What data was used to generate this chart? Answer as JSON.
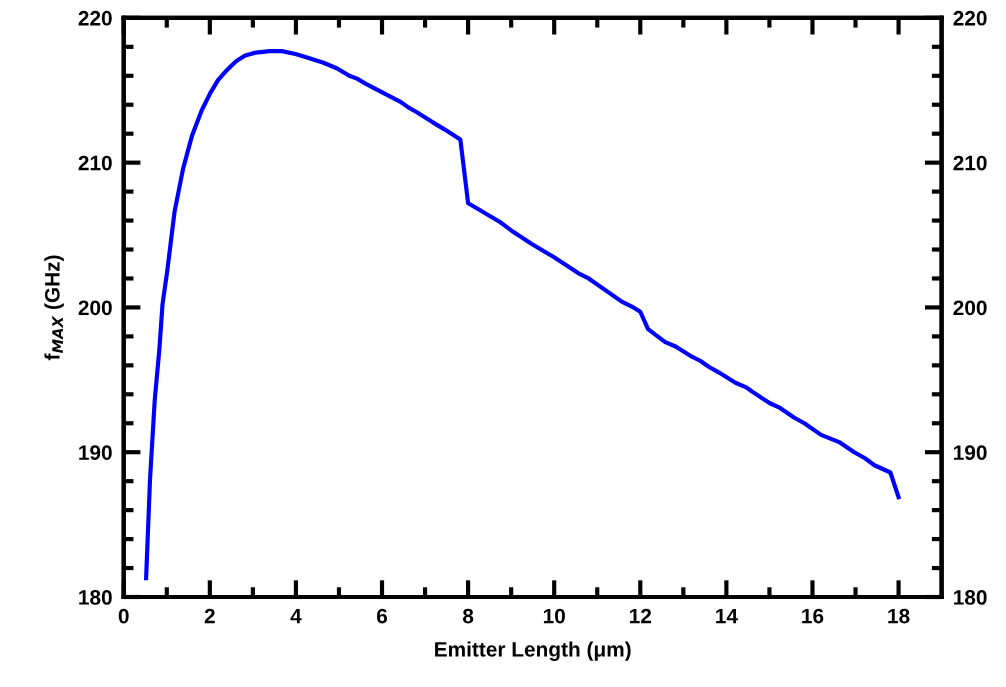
{
  "chart_data": {
    "type": "line",
    "xlabel": "Emitter Length (μm)",
    "ylabel": "f$_{MAX}$ (GHz)",
    "xlim": [
      0,
      19
    ],
    "ylim": [
      180,
      220
    ],
    "y2lim": [
      180,
      220
    ],
    "xticks": [
      0,
      {
        "value": 1,
        "label": null
      },
      2,
      {
        "value": 3,
        "label": null
      },
      4,
      {
        "value": 5,
        "label": null
      },
      6,
      {
        "value": 7,
        "label": null
      },
      8,
      {
        "value": 9,
        "label": null
      },
      10,
      {
        "value": 11,
        "label": null
      },
      12,
      {
        "value": 13,
        "label": null
      },
      14,
      {
        "value": 15,
        "label": null
      },
      16,
      {
        "value": 17,
        "label": null
      },
      18
    ],
    "yticks": [
      180,
      {
        "value": 182,
        "label": null
      },
      {
        "value": 184,
        "label": null
      },
      {
        "value": 186,
        "label": null
      },
      {
        "value": 188,
        "label": null
      },
      190,
      {
        "value": 192,
        "label": null
      },
      {
        "value": 194,
        "label": null
      },
      {
        "value": 196,
        "label": null
      },
      {
        "value": 198,
        "label": null
      },
      200,
      {
        "value": 202,
        "label": null
      },
      {
        "value": 204,
        "label": null
      },
      {
        "value": 206,
        "label": null
      },
      {
        "value": 208,
        "label": null
      },
      210,
      {
        "value": 212,
        "label": null
      },
      {
        "value": 214,
        "label": null
      },
      {
        "value": 216,
        "label": null
      },
      {
        "value": 218,
        "label": null
      },
      220
    ],
    "y2ticks": [
      180,
      {
        "value": 182,
        "label": null
      },
      {
        "value": 184,
        "label": null
      },
      {
        "value": 186,
        "label": null
      },
      {
        "value": 188,
        "label": null
      },
      190,
      {
        "value": 192,
        "label": null
      },
      {
        "value": 194,
        "label": null
      },
      {
        "value": 196,
        "label": null
      },
      {
        "value": 198,
        "label": null
      },
      200,
      {
        "value": 202,
        "label": null
      },
      {
        "value": 204,
        "label": null
      },
      {
        "value": 206,
        "label": null
      },
      {
        "value": 208,
        "label": null
      },
      210,
      {
        "value": 212,
        "label": null
      },
      {
        "value": 214,
        "label": null
      },
      {
        "value": 216,
        "label": null
      },
      {
        "value": 218,
        "label": null
      },
      220
    ],
    "marker": "none",
    "line_style": "solid",
    "series": [
      {
        "color": "#0000ff",
        "x": [
          0.52,
          0.61,
          0.72,
          0.83,
          0.9,
          1.01,
          1.18,
          1.38,
          1.59,
          1.81,
          2.01,
          2.19,
          2.4,
          2.61,
          2.82,
          3.07,
          3.39,
          3.67,
          3.99,
          4.22,
          4.64,
          4.96,
          5.24,
          5.42,
          5.65,
          5.97,
          6.43,
          6.62,
          6.8,
          7.17,
          7.45,
          7.82,
          8.0,
          8.23,
          8.74,
          9.01,
          9.47,
          9.75,
          9.98,
          10.6,
          10.8,
          11.57,
          11.84,
          12.0,
          12.18,
          12.58,
          12.82,
          13.2,
          13.4,
          13.59,
          13.83,
          14.21,
          14.45,
          14.64,
          15.0,
          15.22,
          15.57,
          15.81,
          16.2,
          16.62,
          16.97,
          17.21,
          17.44,
          17.81,
          18.0
        ],
        "values": [
          181.3,
          188.1,
          193.6,
          197.2,
          200.2,
          202.5,
          206.6,
          209.6,
          211.9,
          213.6,
          214.8,
          215.7,
          216.4,
          217.0,
          217.4,
          217.6,
          217.7,
          217.7,
          217.5,
          217.3,
          216.9,
          216.5,
          216.0,
          215.8,
          215.4,
          214.9,
          214.2,
          213.8,
          213.5,
          212.8,
          212.3,
          211.6,
          207.2,
          206.8,
          205.9,
          205.3,
          204.4,
          203.9,
          203.5,
          202.3,
          202.0,
          200.4,
          200.0,
          199.7,
          198.5,
          197.6,
          197.3,
          196.6,
          196.3,
          195.9,
          195.5,
          194.8,
          194.5,
          194.1,
          193.4,
          193.1,
          192.4,
          192.0,
          191.2,
          190.7,
          190.0,
          189.6,
          189.1,
          188.6,
          186.9
        ]
      }
    ]
  }
}
